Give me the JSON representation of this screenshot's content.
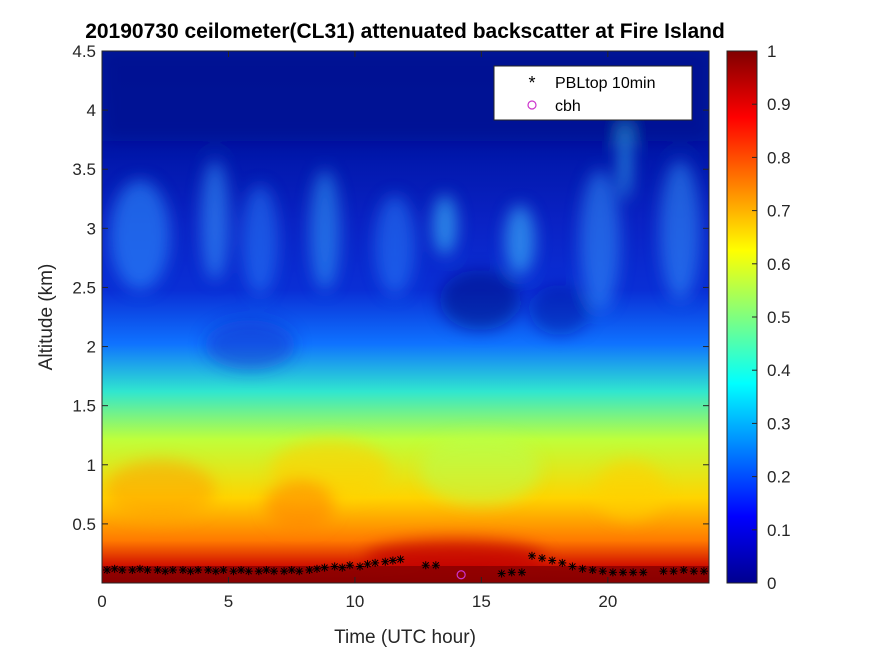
{
  "chart_data": {
    "type": "heatmap",
    "title": "20190730 ceilometer(CL31) attenuated backscatter at Fire Island",
    "xlabel": "Time (UTC hour)",
    "ylabel": "Altitude (km)",
    "xlim": [
      0,
      24
    ],
    "ylim": [
      0,
      4.5
    ],
    "xticks": [
      0,
      5,
      10,
      15,
      20
    ],
    "xtick_labels": [
      "0",
      "5",
      "10",
      "15",
      "20"
    ],
    "yticks": [
      0.5,
      1,
      1.5,
      2,
      2.5,
      3,
      3.5,
      4,
      4.5
    ],
    "ytick_labels": [
      "0.5",
      "1",
      "1.5",
      "2",
      "2.5",
      "3",
      "3.5",
      "4",
      "4.5"
    ],
    "colorbar": {
      "colormap": "jet",
      "range": [
        0,
        1
      ],
      "ticks": [
        0,
        0.1,
        0.2,
        0.3,
        0.4,
        0.5,
        0.6,
        0.7,
        0.8,
        0.9,
        1
      ],
      "tick_labels": [
        "0",
        "0.1",
        "0.2",
        "0.3",
        "0.4",
        "0.5",
        "0.6",
        "0.7",
        "0.8",
        "0.9",
        "1"
      ]
    },
    "legend": {
      "position": "top-right",
      "entries": [
        {
          "label": "PBLtop 10min",
          "marker": "asterisk",
          "color": "#000000"
        },
        {
          "label": "cbh",
          "marker": "circle",
          "color": "#cc33cc"
        }
      ]
    },
    "series": [
      {
        "name": "PBLtop 10min",
        "x": [
          0.2,
          0.5,
          0.8,
          1.2,
          1.5,
          1.8,
          2.2,
          2.5,
          2.8,
          3.2,
          3.5,
          3.8,
          4.2,
          4.5,
          4.8,
          5.2,
          5.5,
          5.8,
          6.2,
          6.5,
          6.8,
          7.2,
          7.5,
          7.8,
          8.2,
          8.5,
          8.8,
          9.2,
          9.5,
          9.8,
          10.2,
          10.5,
          10.8,
          11.2,
          11.5,
          11.8,
          12.8,
          13.2,
          15.8,
          16.2,
          16.6,
          17.0,
          17.4,
          17.8,
          18.2,
          18.6,
          19.0,
          19.4,
          19.8,
          20.2,
          20.6,
          21.0,
          21.4,
          22.2,
          22.6,
          23.0,
          23.4,
          23.8
        ],
        "y": [
          0.11,
          0.12,
          0.11,
          0.11,
          0.12,
          0.11,
          0.11,
          0.1,
          0.11,
          0.11,
          0.1,
          0.11,
          0.11,
          0.1,
          0.11,
          0.1,
          0.11,
          0.1,
          0.1,
          0.11,
          0.1,
          0.1,
          0.11,
          0.1,
          0.11,
          0.12,
          0.13,
          0.14,
          0.13,
          0.15,
          0.14,
          0.16,
          0.17,
          0.18,
          0.19,
          0.2,
          0.15,
          0.15,
          0.08,
          0.09,
          0.09,
          0.23,
          0.21,
          0.19,
          0.17,
          0.14,
          0.12,
          0.11,
          0.1,
          0.09,
          0.09,
          0.09,
          0.09,
          0.1,
          0.1,
          0.11,
          0.1,
          0.1
        ]
      },
      {
        "name": "cbh",
        "x": [
          14.2
        ],
        "y": [
          0.07
        ]
      }
    ]
  }
}
